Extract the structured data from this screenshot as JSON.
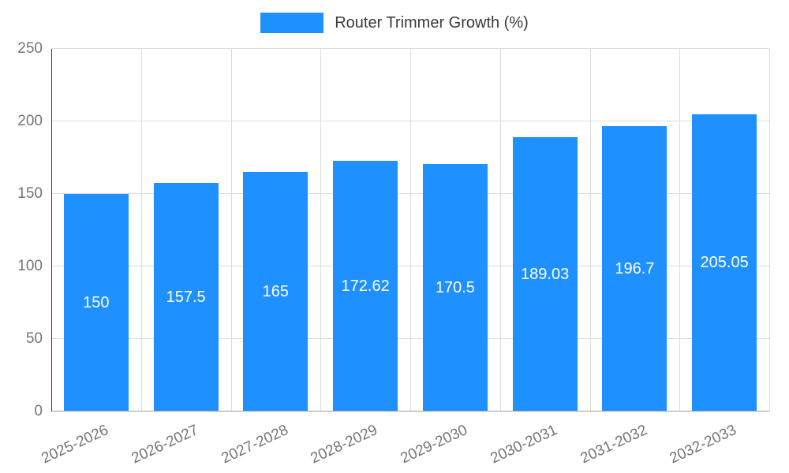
{
  "chart": {
    "colors": {
      "bar": "#1E90FF",
      "grid": "#dcdcdc",
      "axis_y": "#3c3c3c",
      "axis_x": "#9e9e9e",
      "tick_label": "#757575",
      "bar_value_label": "#ffffff",
      "legend_text": "#3b3b3b",
      "background": "#ffffff"
    }
  },
  "chart_data": {
    "type": "bar",
    "title": "Router Trimmer Growth (%)",
    "series_name": "Router Trimmer Growth (%)",
    "categories": [
      "2025-2026",
      "2026-2027",
      "2027-2028",
      "2028-2029",
      "2029-2030",
      "2030-2031",
      "2031-2032",
      "2032-2033"
    ],
    "values": [
      150,
      157.5,
      165,
      172.62,
      170.5,
      189.03,
      196.7,
      205.05
    ],
    "value_labels": [
      "150",
      "157.5",
      "165",
      "172.62",
      "170.5",
      "189.03",
      "196.7",
      "205.05"
    ],
    "xlabel": "",
    "ylabel": "",
    "ylim": [
      0,
      250
    ],
    "yticks": [
      0,
      50,
      100,
      150,
      200,
      250
    ],
    "grid": true,
    "legend_position": "top"
  }
}
